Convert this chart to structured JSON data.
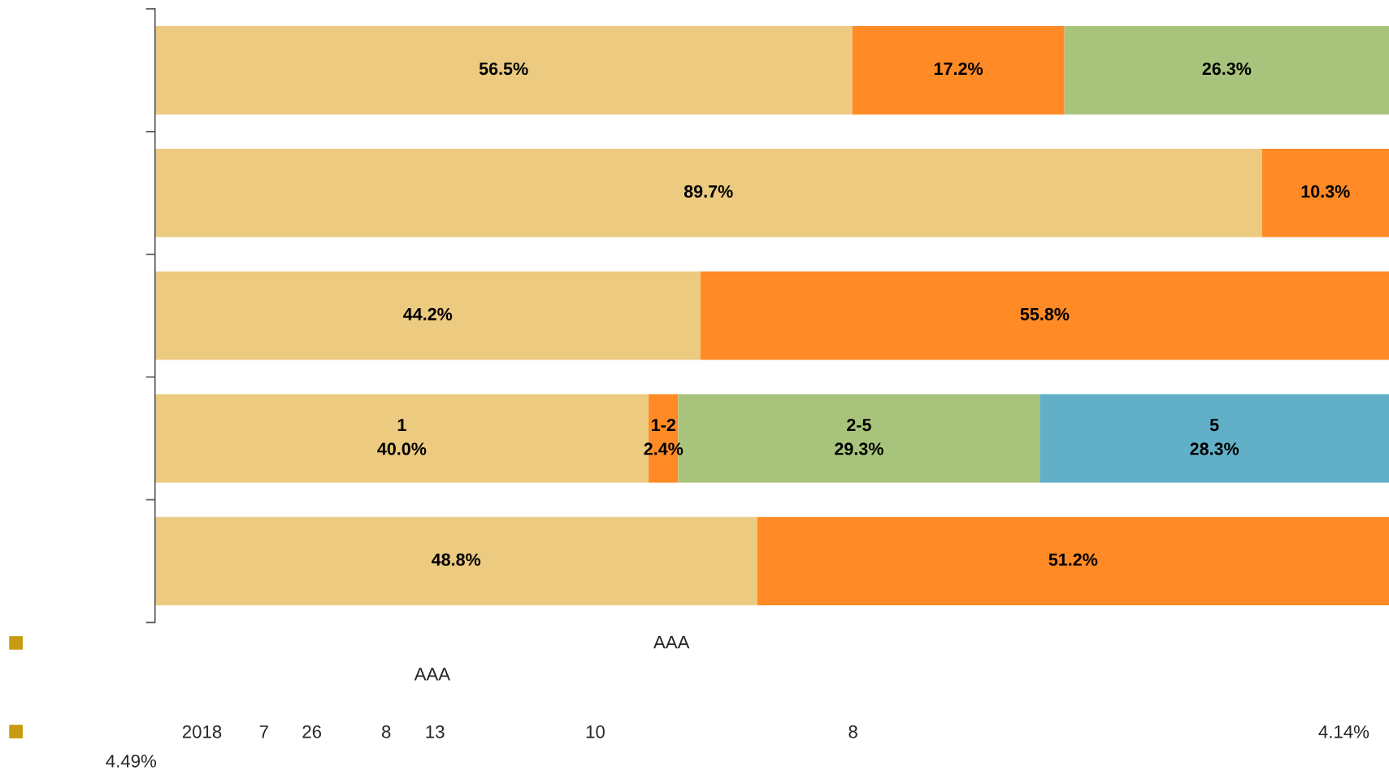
{
  "chart_data": {
    "type": "bar",
    "orientation": "horizontal",
    "stacked": true,
    "categories": [
      null,
      null,
      null,
      null,
      null
    ],
    "xlim": [
      0,
      100
    ],
    "tick_labels": false,
    "grid": false,
    "legend": false,
    "series": [
      {
        "color": "#ecca80",
        "values": [
          56.5,
          89.7,
          44.2,
          40.0,
          48.8
        ],
        "value_labels": [
          "56.5%",
          "89.7%",
          "44.2%",
          "1\n40.0%",
          "48.8%"
        ]
      },
      {
        "color": "#ff8a26",
        "values": [
          17.2,
          10.3,
          55.8,
          2.4,
          51.2
        ],
        "value_labels": [
          "17.2%",
          "10.3%",
          "55.8%",
          "1-2\n2.4%",
          "51.2%"
        ]
      },
      {
        "color": "#a8c47c",
        "values": [
          26.3,
          null,
          null,
          29.3,
          null
        ],
        "value_labels": [
          "26.3%",
          null,
          null,
          "2-5\n29.3%",
          null
        ]
      },
      {
        "color": "#62b0c8",
        "values": [
          null,
          null,
          null,
          28.3,
          null
        ],
        "value_labels": [
          null,
          null,
          null,
          "5\n28.3%",
          null
        ]
      }
    ],
    "annotations": [
      "AAA",
      "AAA",
      "2018",
      "7",
      "26",
      "8",
      "13",
      "10",
      "8",
      "4.14%",
      "4.49%"
    ]
  }
}
